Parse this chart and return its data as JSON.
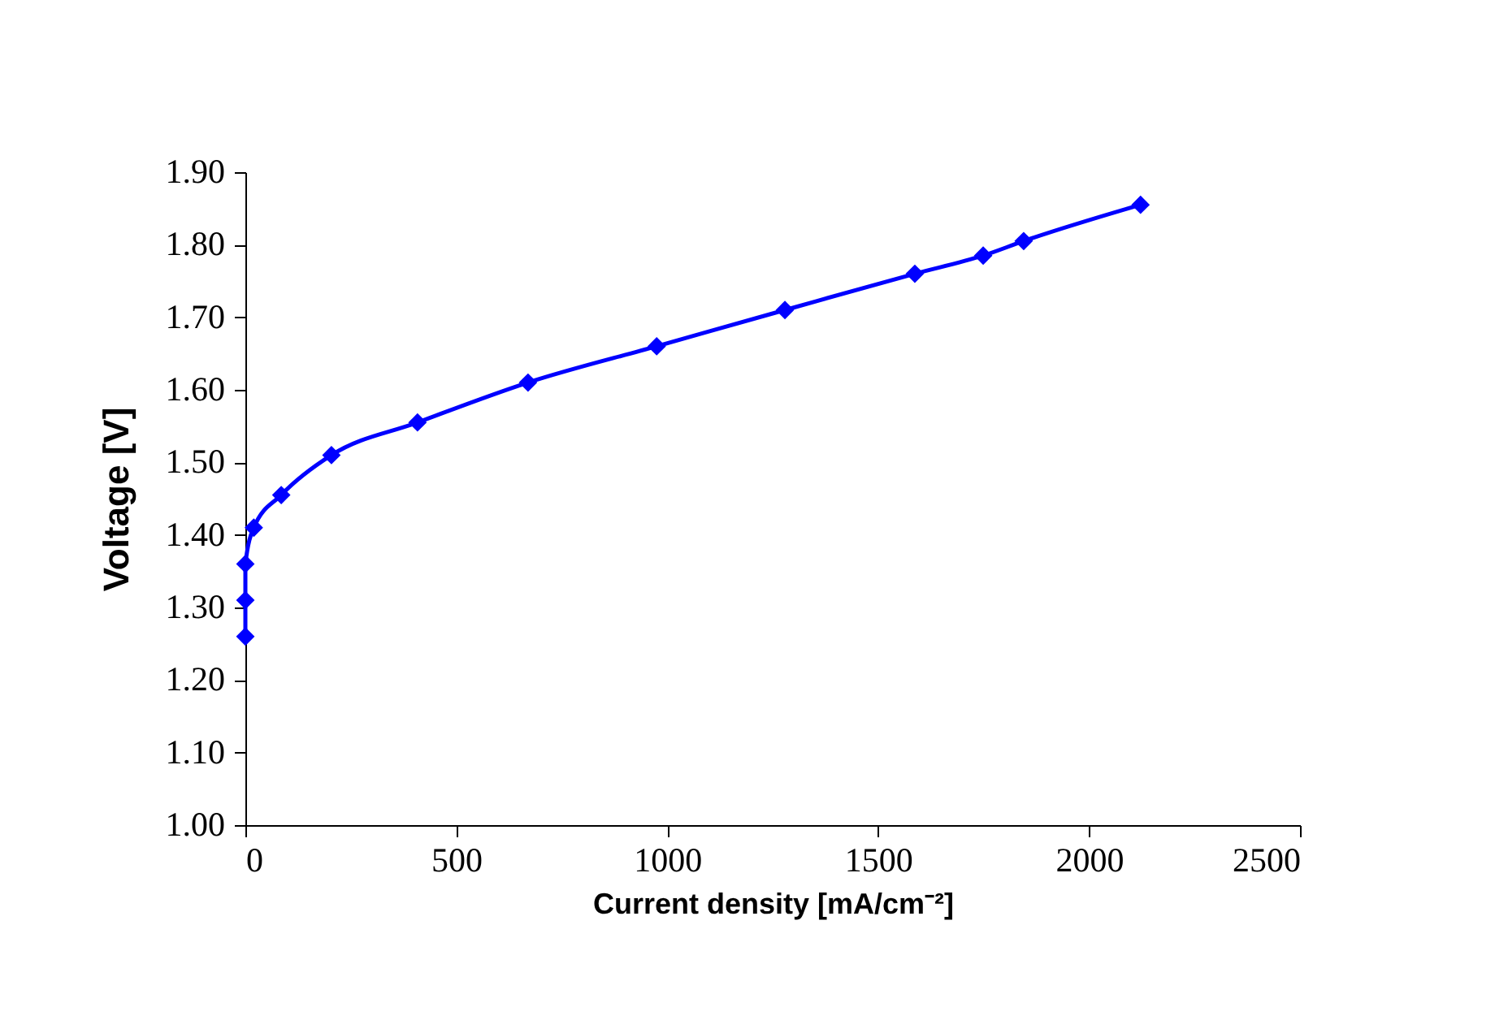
{
  "chart_data": {
    "type": "line",
    "xlabel": "Current density [mA/cm⁻²]",
    "ylabel": "Voltage [V]",
    "series": [
      {
        "color": "#0000ff",
        "x": [
          0,
          0,
          0,
          20,
          85,
          204,
          408,
          670,
          975,
          1279,
          1587,
          1749,
          1845,
          2122
        ],
        "values": [
          1.26,
          1.31,
          1.36,
          1.41,
          1.455,
          1.51,
          1.555,
          1.61,
          1.66,
          1.71,
          1.76,
          1.785,
          1.805,
          1.855
        ]
      }
    ],
    "xlim": [
      0,
      2500
    ],
    "xticks": [
      0,
      500,
      1000,
      1500,
      2000,
      2500
    ],
    "ylim": [
      1.0,
      1.9
    ],
    "yticks": [
      {
        "value": 1.0,
        "label": "1.00"
      },
      {
        "value": 1.1,
        "label": "1.10"
      },
      {
        "value": 1.2,
        "label": "1.20"
      },
      {
        "value": 1.3,
        "label": "1.30"
      },
      {
        "value": 1.4,
        "label": "1.40"
      },
      {
        "value": 1.5,
        "label": "1.50"
      },
      {
        "value": 1.6,
        "label": "1.60"
      },
      {
        "value": 1.7,
        "label": "1.70"
      },
      {
        "value": 1.8,
        "label": "1.80"
      },
      {
        "value": 1.9,
        "label": "1.90"
      }
    ],
    "grid": false,
    "marker": "diamond",
    "line_style": "solid"
  }
}
